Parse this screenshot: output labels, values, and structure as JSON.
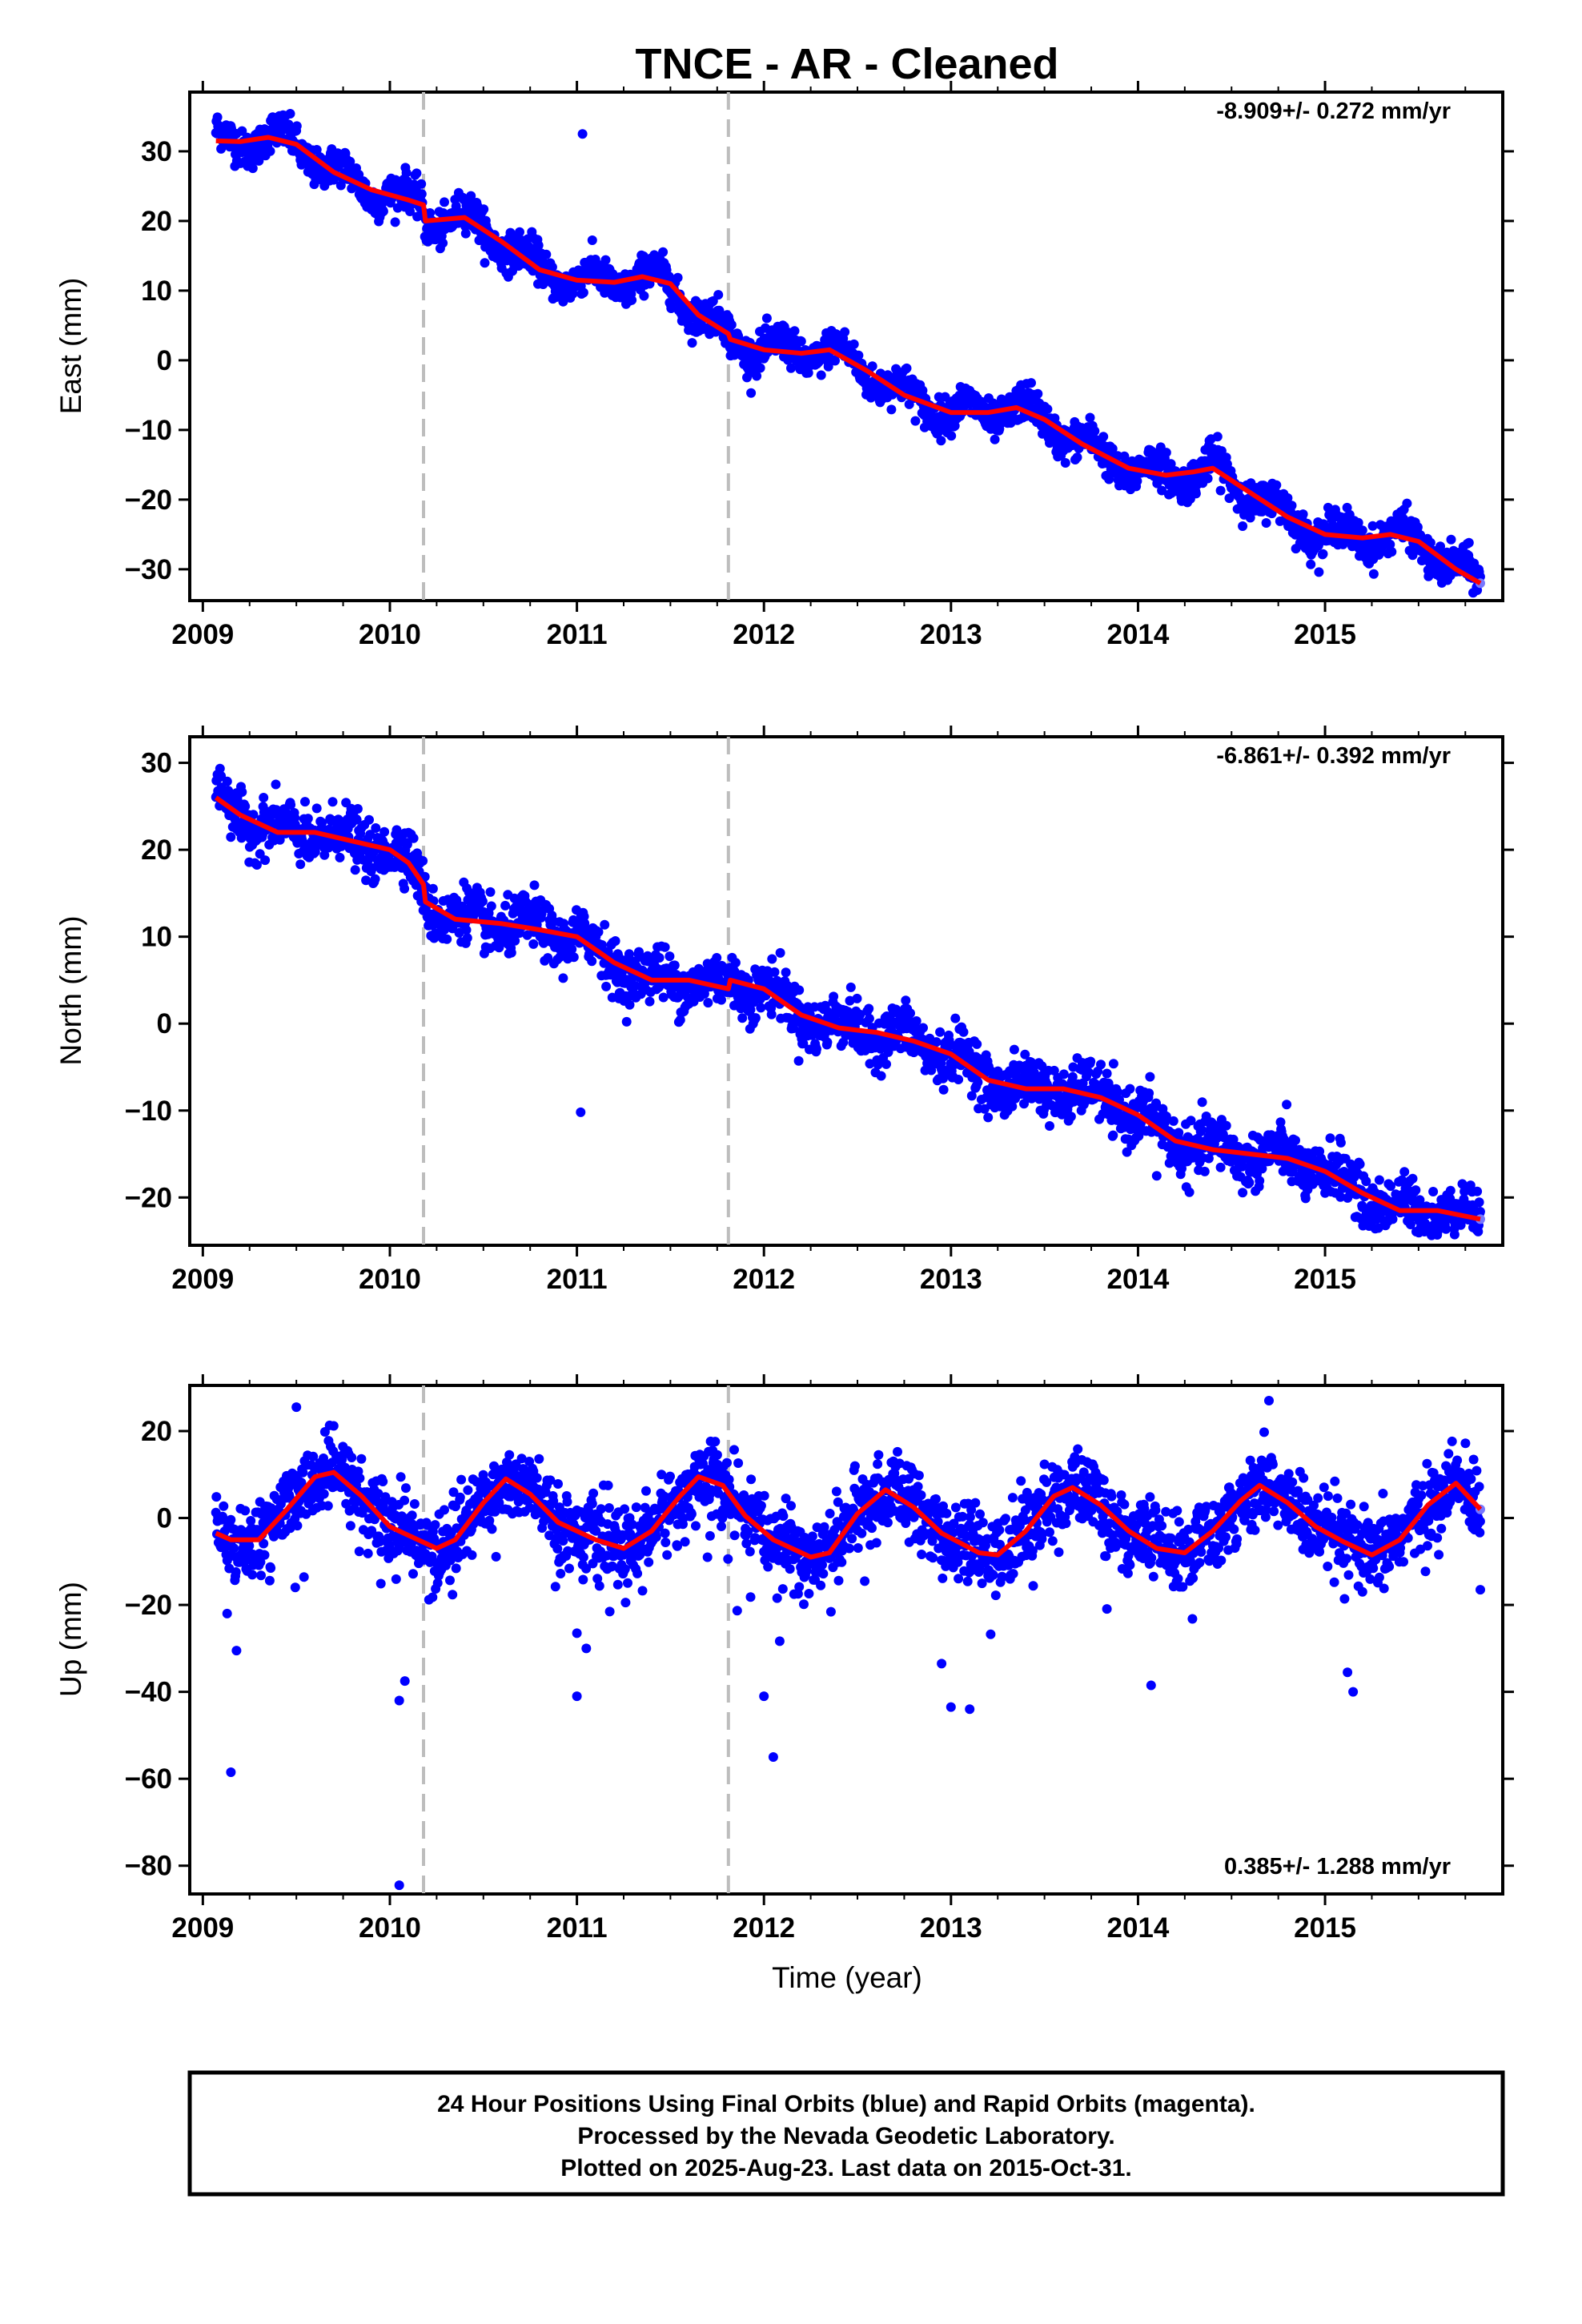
{
  "title": "TNCE  - AR - Cleaned",
  "xlabel": "Time (year)",
  "footer": {
    "line1": "24 Hour Positions Using Final Orbits (blue) and Rapid Orbits (magenta).",
    "line2": "Processed by the Nevada Geodetic Laboratory.",
    "line3": "Plotted on 2025-Aug-23. Last data on 2015-Oct-31."
  },
  "colors": {
    "points": "#0000ff",
    "fit": "#ff0000",
    "breaks": "#bdbdbd",
    "last_point": "#7777ff"
  },
  "chart_data": [
    {
      "type": "scatter",
      "name": "east",
      "ylabel": "East (mm)",
      "rate": "-8.909+/- 0.272 mm/yr",
      "xlim": [
        2008.93,
        2015.95
      ],
      "ylim": [
        -34.5,
        38.5
      ],
      "x_ticks": [
        2009,
        2010,
        2011,
        2012,
        2013,
        2014,
        2015
      ],
      "y_ticks": [
        30,
        20,
        10,
        0,
        -10,
        -20,
        -30
      ],
      "y_tick_labels": [
        "30",
        "20",
        "10",
        "0",
        "−10",
        "−20",
        "−30"
      ],
      "x_start": 2009.07,
      "x_end": 2015.83,
      "break_lines": [
        2010.18,
        2011.81
      ],
      "fit": [
        [
          2009.07,
          31.5
        ],
        [
          2009.2,
          31.4
        ],
        [
          2009.35,
          32.0
        ],
        [
          2009.5,
          31.0
        ],
        [
          2009.7,
          27.0
        ],
        [
          2009.9,
          24.5
        ],
        [
          2010.1,
          23.0
        ],
        [
          2010.18,
          22.3
        ],
        [
          2010.19,
          20.0
        ],
        [
          2010.4,
          20.5
        ],
        [
          2010.6,
          17.0
        ],
        [
          2010.8,
          13.0
        ],
        [
          2011.0,
          11.5
        ],
        [
          2011.2,
          11.2
        ],
        [
          2011.35,
          12.0
        ],
        [
          2011.5,
          11.0
        ],
        [
          2011.65,
          6.5
        ],
        [
          2011.81,
          3.8
        ],
        [
          2011.82,
          3.0
        ],
        [
          2012.0,
          1.5
        ],
        [
          2012.2,
          1.0
        ],
        [
          2012.35,
          1.5
        ],
        [
          2012.55,
          -1.5
        ],
        [
          2012.75,
          -5.0
        ],
        [
          2013.0,
          -7.5
        ],
        [
          2013.2,
          -7.5
        ],
        [
          2013.35,
          -6.8
        ],
        [
          2013.5,
          -8.5
        ],
        [
          2013.7,
          -12.0
        ],
        [
          2013.95,
          -15.5
        ],
        [
          2014.15,
          -16.5
        ],
        [
          2014.3,
          -16.0
        ],
        [
          2014.4,
          -15.5
        ],
        [
          2014.6,
          -19.0
        ],
        [
          2014.8,
          -22.5
        ],
        [
          2015.0,
          -25.0
        ],
        [
          2015.2,
          -25.5
        ],
        [
          2015.35,
          -25.0
        ],
        [
          2015.5,
          -26.0
        ],
        [
          2015.7,
          -30.0
        ],
        [
          2015.83,
          -32.0
        ]
      ],
      "seasonal_amp": 1.6,
      "noise_sd": 1.3,
      "outliers": [
        [
          2011.03,
          32.5
        ]
      ]
    },
    {
      "type": "scatter",
      "name": "north",
      "ylabel": "North (mm)",
      "rate": "-6.861+/- 0.392 mm/yr",
      "xlim": [
        2008.93,
        2015.95
      ],
      "ylim": [
        -25.5,
        33.0
      ],
      "x_ticks": [
        2009,
        2010,
        2011,
        2012,
        2013,
        2014,
        2015
      ],
      "y_ticks": [
        30,
        20,
        10,
        0,
        -10,
        -20
      ],
      "y_tick_labels": [
        "30",
        "20",
        "10",
        "0",
        "−10",
        "−20"
      ],
      "x_start": 2009.07,
      "x_end": 2015.83,
      "break_lines": [
        2010.18,
        2011.81
      ],
      "fit": [
        [
          2009.07,
          26.0
        ],
        [
          2009.2,
          24.0
        ],
        [
          2009.4,
          22.0
        ],
        [
          2009.6,
          22.0
        ],
        [
          2009.8,
          21.0
        ],
        [
          2010.0,
          20.0
        ],
        [
          2010.1,
          18.5
        ],
        [
          2010.18,
          16.0
        ],
        [
          2010.19,
          14.0
        ],
        [
          2010.35,
          12.0
        ],
        [
          2010.6,
          11.5
        ],
        [
          2010.8,
          10.8
        ],
        [
          2011.0,
          10.0
        ],
        [
          2011.2,
          7.0
        ],
        [
          2011.4,
          5.0
        ],
        [
          2011.6,
          5.0
        ],
        [
          2011.81,
          4.0
        ],
        [
          2011.82,
          5.0
        ],
        [
          2012.0,
          4.0
        ],
        [
          2012.2,
          1.0
        ],
        [
          2012.4,
          -0.5
        ],
        [
          2012.6,
          -1.0
        ],
        [
          2012.8,
          -2.0
        ],
        [
          2013.0,
          -3.5
        ],
        [
          2013.2,
          -6.5
        ],
        [
          2013.4,
          -7.5
        ],
        [
          2013.6,
          -7.5
        ],
        [
          2013.8,
          -8.5
        ],
        [
          2014.0,
          -10.5
        ],
        [
          2014.2,
          -13.5
        ],
        [
          2014.4,
          -14.5
        ],
        [
          2014.6,
          -15.0
        ],
        [
          2014.8,
          -15.5
        ],
        [
          2015.0,
          -17.0
        ],
        [
          2015.2,
          -19.5
        ],
        [
          2015.4,
          -21.5
        ],
        [
          2015.6,
          -21.5
        ],
        [
          2015.83,
          -22.5
        ]
      ],
      "seasonal_amp": 1.2,
      "noise_sd": 1.5,
      "outliers": [
        [
          2011.02,
          -10.2
        ],
        [
          2014.1,
          -17.5
        ]
      ]
    },
    {
      "type": "scatter",
      "name": "up",
      "ylabel": "Up (mm)",
      "rate": "0.385+/- 1.288 mm/yr",
      "xlim": [
        2008.93,
        2015.95
      ],
      "ylim": [
        -86.5,
        30.5
      ],
      "x_ticks": [
        2009,
        2010,
        2011,
        2012,
        2013,
        2014,
        2015
      ],
      "y_ticks": [
        20,
        0,
        -20,
        -40,
        -60,
        -80
      ],
      "y_tick_labels": [
        "20",
        "0",
        "−20",
        "−40",
        "−60",
        "−80"
      ],
      "x_start": 2009.07,
      "x_end": 2015.83,
      "break_lines": [
        2010.18,
        2011.81
      ],
      "fit": [
        [
          2009.07,
          -3.5
        ],
        [
          2009.15,
          -5.0
        ],
        [
          2009.3,
          -5.0
        ],
        [
          2009.45,
          2.0
        ],
        [
          2009.6,
          9.5
        ],
        [
          2009.7,
          10.5
        ],
        [
          2009.85,
          5.0
        ],
        [
          2010.0,
          -2.0
        ],
        [
          2010.15,
          -5.0
        ],
        [
          2010.25,
          -7.0
        ],
        [
          2010.35,
          -5.0
        ],
        [
          2010.5,
          3.5
        ],
        [
          2010.62,
          9.0
        ],
        [
          2010.75,
          5.5
        ],
        [
          2010.9,
          -1.0
        ],
        [
          2011.1,
          -5.0
        ],
        [
          2011.25,
          -7.0
        ],
        [
          2011.4,
          -3.0
        ],
        [
          2011.55,
          5.0
        ],
        [
          2011.65,
          9.5
        ],
        [
          2011.78,
          7.5
        ],
        [
          2011.9,
          0.5
        ],
        [
          2012.05,
          -5.0
        ],
        [
          2012.25,
          -9.0
        ],
        [
          2012.35,
          -8.0
        ],
        [
          2012.5,
          1.0
        ],
        [
          2012.65,
          6.5
        ],
        [
          2012.8,
          2.5
        ],
        [
          2012.95,
          -3.5
        ],
        [
          2013.15,
          -8.0
        ],
        [
          2013.25,
          -8.5
        ],
        [
          2013.4,
          -3.0
        ],
        [
          2013.55,
          5.0
        ],
        [
          2013.65,
          7.0
        ],
        [
          2013.8,
          3.0
        ],
        [
          2013.95,
          -3.0
        ],
        [
          2014.1,
          -7.0
        ],
        [
          2014.25,
          -8.0
        ],
        [
          2014.4,
          -3.0
        ],
        [
          2014.55,
          4.0
        ],
        [
          2014.65,
          7.5
        ],
        [
          2014.8,
          3.5
        ],
        [
          2014.95,
          -2.0
        ],
        [
          2015.1,
          -5.5
        ],
        [
          2015.25,
          -8.5
        ],
        [
          2015.4,
          -5.0
        ],
        [
          2015.55,
          3.0
        ],
        [
          2015.7,
          8.0
        ],
        [
          2015.83,
          2.0
        ]
      ],
      "seasonal_amp": 1.0,
      "noise_sd": 4.2,
      "outliers": [
        [
          2009.15,
          -58.5
        ],
        [
          2009.18,
          -30.5
        ],
        [
          2009.13,
          -22.0
        ],
        [
          2010.05,
          -42.0
        ],
        [
          2010.08,
          -37.5
        ],
        [
          2010.05,
          -84.5
        ],
        [
          2011.0,
          -41.0
        ],
        [
          2011.0,
          -26.5
        ],
        [
          2011.05,
          -30.0
        ],
        [
          2012.0,
          -41.0
        ],
        [
          2012.05,
          -55.0
        ],
        [
          2012.95,
          -33.5
        ],
        [
          2013.0,
          -43.5
        ],
        [
          2013.1,
          -44.0
        ],
        [
          2014.07,
          -38.5
        ],
        [
          2015.12,
          -35.5
        ],
        [
          2015.15,
          -40.0
        ],
        [
          2015.83,
          -16.5
        ],
        [
          2014.7,
          27.0
        ],
        [
          2009.5,
          25.5
        ]
      ]
    }
  ]
}
